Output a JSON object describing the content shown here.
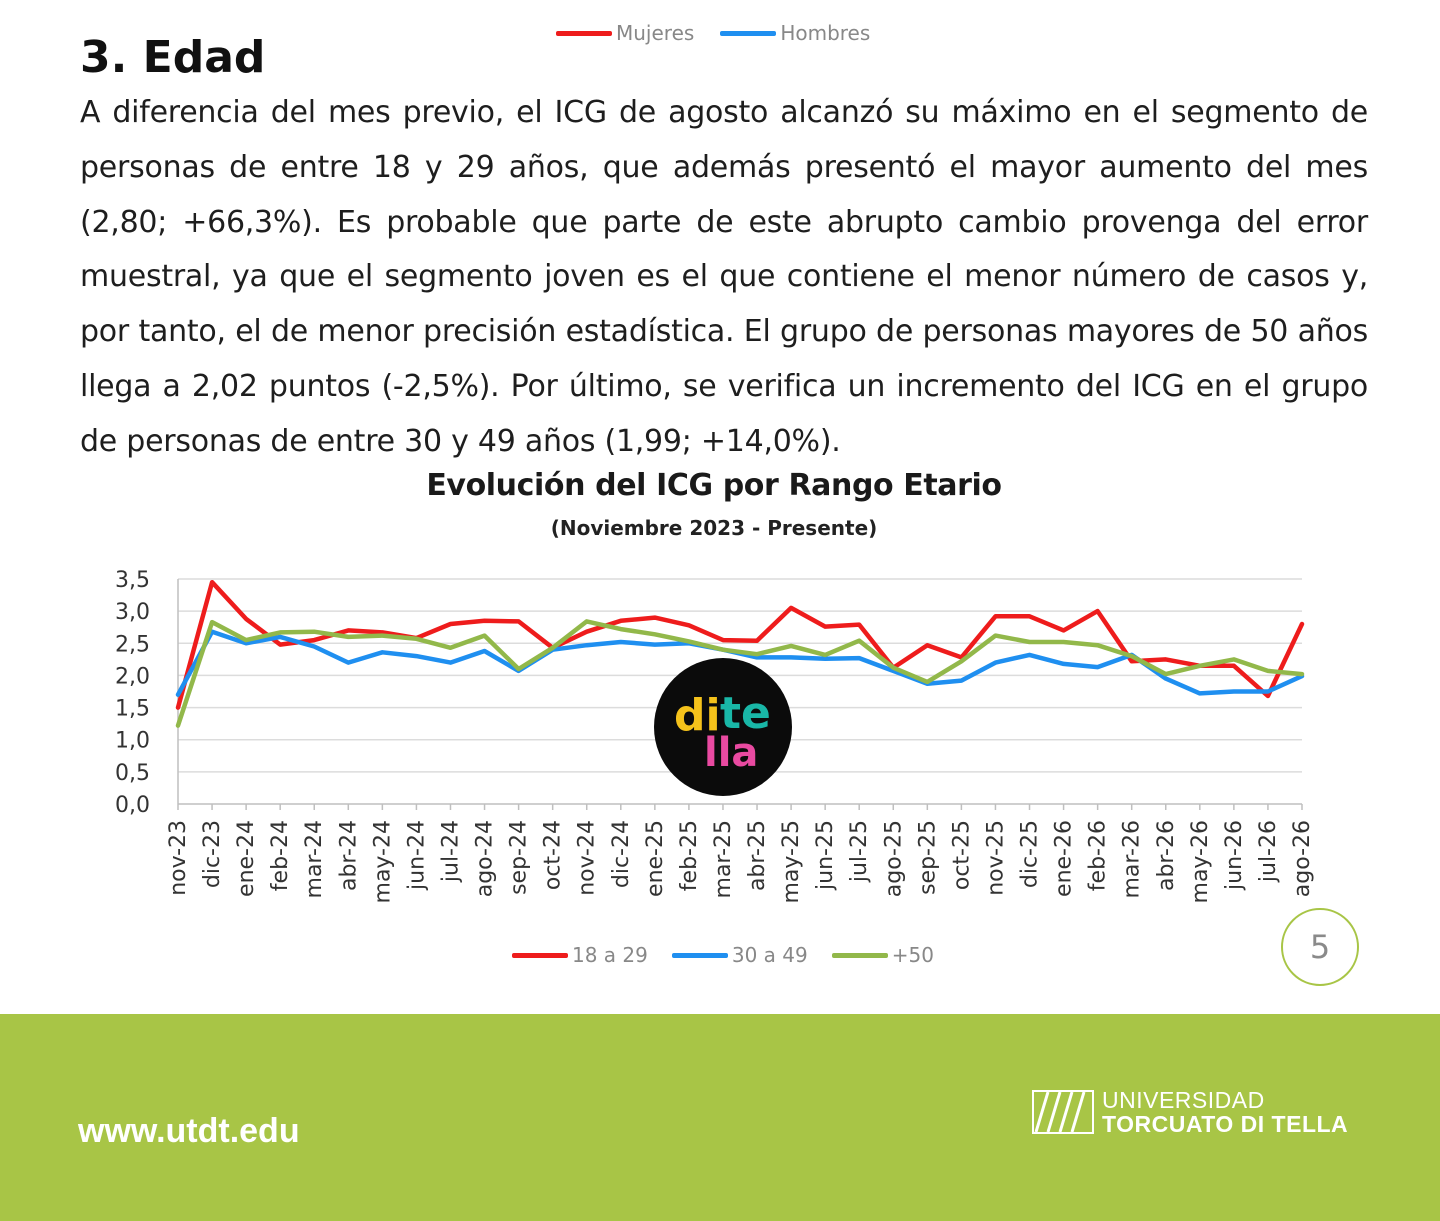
{
  "top_legend": {
    "items": [
      {
        "label": "Mujeres",
        "color": "#ee1c1c"
      },
      {
        "label": "Hombres",
        "color": "#1f8ff0"
      }
    ]
  },
  "section": {
    "heading": "3. Edad",
    "paragraph": "A diferencia del mes previo, el ICG de agosto alcanzó su máximo en el segmento de personas de entre 18 y 29 años, que además presentó el mayor aumento del mes (2,80; +66,3%). Es probable que parte de este abrupto cambio provenga del error muestral, ya que el segmento joven es el que contiene el menor número de casos y, por tanto, el de menor precisión estadística. El grupo de personas mayores de 50 años llega a 2,02 puntos (-2,5%). Por último, se verifica un incremento del ICG en el grupo de personas de entre 30 y 49 años (1,99; +14,0%)."
  },
  "chart_data": {
    "type": "line",
    "title": "Evolución del ICG por Rango Etario",
    "subtitle": "(Noviembre 2023 - Presente)",
    "ylim": [
      0,
      3.5
    ],
    "yticks": [
      "0,0",
      "0,5",
      "1,0",
      "1,5",
      "2,0",
      "2,5",
      "3,0",
      "3,5"
    ],
    "grid": true,
    "legend_position": "bottom",
    "categories": [
      "nov-23",
      "dic-23",
      "ene-24",
      "feb-24",
      "mar-24",
      "abr-24",
      "may-24",
      "jun-24",
      "jul-24",
      "ago-24",
      "sep-24",
      "oct-24",
      "nov-24",
      "dic-24",
      "ene-25",
      "feb-25",
      "mar-25",
      "abr-25",
      "may-25",
      "jun-25",
      "jul-25",
      "ago-25",
      "sep-25",
      "oct-25",
      "nov-25",
      "dic-25",
      "ene-26",
      "feb-26",
      "mar-26",
      "abr-26",
      "may-26",
      "jun-26",
      "jul-26",
      "ago-26"
    ],
    "series": [
      {
        "name": "18 a 29",
        "color": "#ee1c1c",
        "values": [
          1.5,
          3.45,
          2.88,
          2.48,
          2.55,
          2.7,
          2.67,
          2.58,
          2.8,
          2.85,
          2.84,
          2.43,
          2.68,
          2.85,
          2.9,
          2.78,
          2.55,
          2.54,
          3.05,
          2.76,
          2.79,
          2.12,
          2.47,
          2.28,
          2.92,
          2.92,
          2.7,
          3.0,
          2.22,
          2.25,
          2.15,
          2.15,
          1.68,
          2.8
        ]
      },
      {
        "name": "30 a 49",
        "color": "#1f8ff0",
        "values": [
          1.7,
          2.68,
          2.5,
          2.6,
          2.45,
          2.2,
          2.36,
          2.3,
          2.2,
          2.38,
          2.07,
          2.4,
          2.47,
          2.52,
          2.48,
          2.5,
          2.4,
          2.28,
          2.28,
          2.26,
          2.27,
          2.07,
          1.87,
          1.92,
          2.2,
          2.32,
          2.18,
          2.13,
          2.32,
          1.95,
          1.72,
          1.75,
          1.75,
          1.99
        ]
      },
      {
        "name": "+50",
        "color": "#92b84a",
        "values": [
          1.22,
          2.83,
          2.55,
          2.67,
          2.68,
          2.6,
          2.62,
          2.57,
          2.43,
          2.62,
          2.1,
          2.43,
          2.84,
          2.72,
          2.64,
          2.53,
          2.4,
          2.33,
          2.46,
          2.32,
          2.54,
          2.12,
          1.9,
          2.22,
          2.62,
          2.52,
          2.52,
          2.47,
          2.3,
          2.02,
          2.15,
          2.25,
          2.07,
          2.02
        ]
      }
    ]
  },
  "bottom_legend": {
    "items": [
      {
        "label": "18 a 29",
        "color": "#ee1c1c"
      },
      {
        "label": "30 a 49",
        "color": "#1f8ff0"
      },
      {
        "label": "+50",
        "color": "#92b84a"
      }
    ]
  },
  "logo": {
    "line1a": "di",
    "line1b": "te",
    "line2": "lla",
    "colors": {
      "di": "#f5c21b",
      "te": "#19b7a7",
      "lla": "#e94aa1"
    }
  },
  "page_number": "5",
  "footer": {
    "url": "www.utdt.edu",
    "university_line1": "UNIVERSIDAD",
    "university_line2": "TORCUATO DI TELLA",
    "background": "#a8c546"
  }
}
